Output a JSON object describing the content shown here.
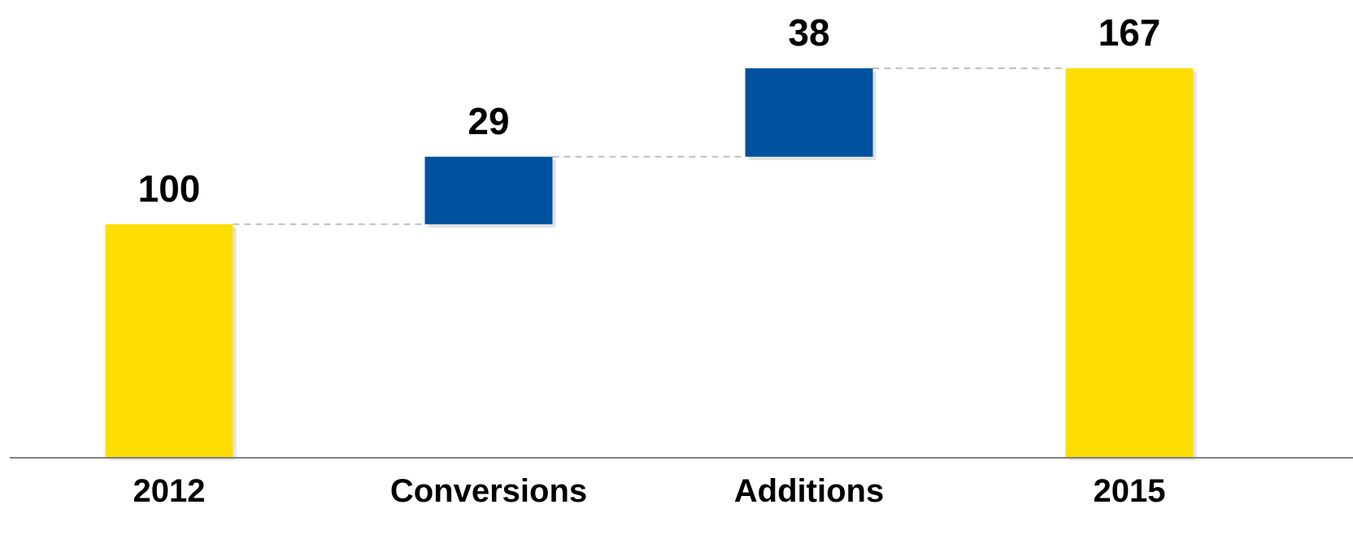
{
  "chart_data": {
    "type": "bar",
    "subtype": "waterfall",
    "categories": [
      "2012",
      "Conversions",
      "Additions",
      "2015"
    ],
    "values": [
      100,
      29,
      38,
      167
    ],
    "kinds": [
      "total",
      "increase",
      "increase",
      "total"
    ],
    "data_labels": [
      "100",
      "29",
      "38",
      "167"
    ],
    "title": "",
    "xlabel": "",
    "ylabel": "",
    "ylim": [
      0,
      200
    ],
    "grid": false,
    "legend": "none",
    "connector_lines": true,
    "colors": {
      "total": "#FFDD00",
      "increase": "#00529F",
      "axis": "#808080",
      "connector": "#BFBFBF",
      "shadow": "#C8C8C8"
    }
  }
}
